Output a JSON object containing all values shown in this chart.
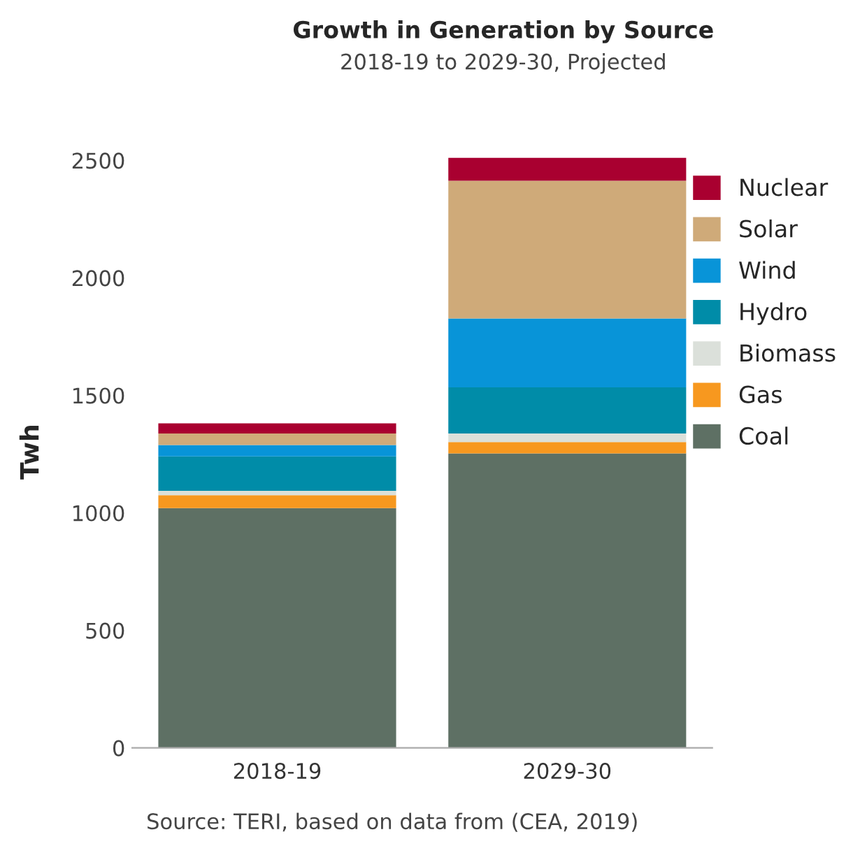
{
  "chart_data": {
    "type": "bar",
    "stacked": true,
    "title": "Growth in Generation by Source",
    "subtitle": "2018-19 to 2029-30, Projected",
    "ylabel": "Twh",
    "annotations": [
      "Source: TERI, based on data from (CEA, 2019)"
    ],
    "categories": [
      "2018-19",
      "2029-30"
    ],
    "series": [
      {
        "name": "Coal",
        "color": "#5e7064",
        "values": [
          1020,
          1253
        ]
      },
      {
        "name": "Gas",
        "color": "#f7981f",
        "values": [
          55,
          48
        ]
      },
      {
        "name": "Biomass",
        "color": "#dbe0da",
        "values": [
          19,
          37
        ]
      },
      {
        "name": "Hydro",
        "color": "#008ca8",
        "values": [
          146,
          196
        ]
      },
      {
        "name": "Wind",
        "color": "#0894d8",
        "values": [
          49,
          293
        ]
      },
      {
        "name": "Solar",
        "color": "#cfaa79",
        "values": [
          49,
          586
        ]
      },
      {
        "name": "Nuclear",
        "color": "#a90030",
        "values": [
          43,
          98
        ]
      }
    ],
    "ylim": [
      0,
      2520
    ],
    "yticks": [
      0,
      500,
      1000,
      1500,
      2000,
      2500
    ],
    "grid": false,
    "legend": "top right"
  }
}
